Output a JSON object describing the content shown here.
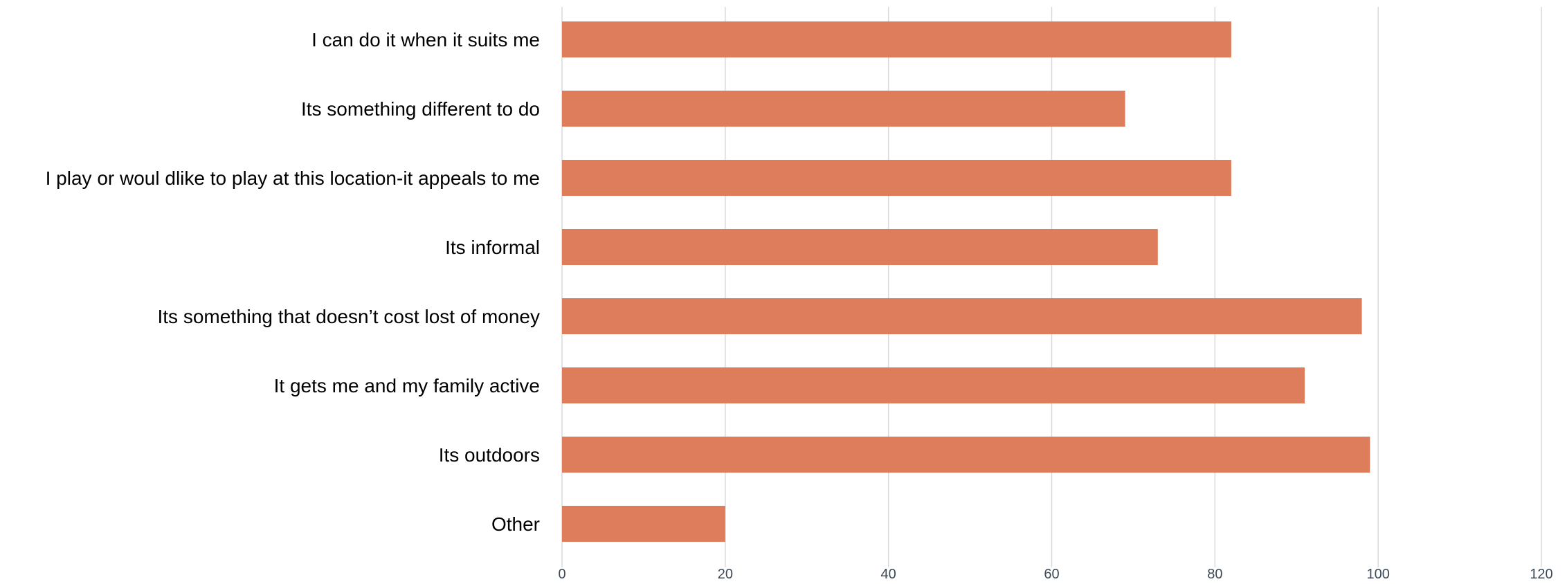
{
  "chart_data": {
    "type": "bar",
    "orientation": "horizontal",
    "title": "",
    "xlabel": "",
    "ylabel": "",
    "categories": [
      "I can do it when it suits me",
      "Its something different to do",
      "I play or woul dlike to play at this location-it appeals to me",
      "Its informal",
      "Its something that doesn’t cost lost of money",
      "It gets me and my family active",
      "Its outdoors",
      "Other"
    ],
    "values": [
      82,
      69,
      82,
      73,
      98,
      91,
      99,
      20
    ],
    "xlim": [
      0,
      120
    ],
    "xticks": [
      0,
      20,
      40,
      60,
      80,
      100,
      120
    ],
    "xtick_labels": [
      "0",
      "20",
      "40",
      "60",
      "80",
      "100",
      "120"
    ],
    "grid": "vertical",
    "legend": "none",
    "colors": {
      "bar": "#dd7d5c",
      "grid": "#d9d9d9",
      "tick_text": "#3c4a57",
      "label_text": "#000000"
    }
  }
}
